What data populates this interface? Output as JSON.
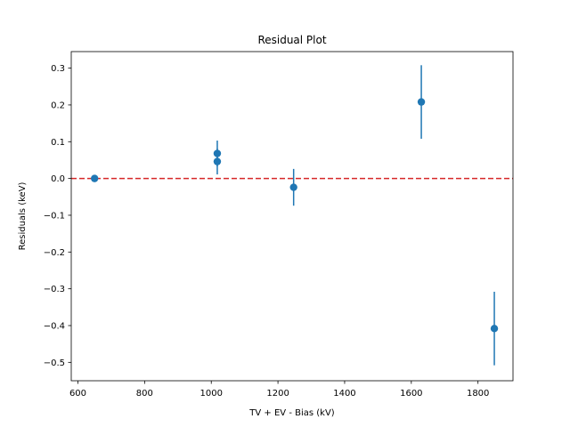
{
  "chart_data": {
    "type": "scatter",
    "title": "Residual Plot",
    "xlabel": "TV + EV - Bias (kV)",
    "ylabel": "Residuals (keV)",
    "xlim": [
      580,
      1905
    ],
    "ylim": [
      -0.55,
      0.345
    ],
    "xticks": [
      600,
      800,
      1000,
      1200,
      1400,
      1600,
      1800
    ],
    "yticks": [
      -0.5,
      -0.4,
      -0.3,
      -0.2,
      -0.1,
      0.0,
      0.1,
      0.2,
      0.3
    ],
    "ytick_labels": [
      "−0.5",
      "−0.4",
      "−0.3",
      "−0.2",
      "−0.1",
      "0.0",
      "0.1",
      "0.2",
      "0.3"
    ],
    "points": [
      {
        "x": 650,
        "y": 0.0,
        "err": 0.005
      },
      {
        "x": 1018,
        "y": 0.068,
        "err": 0.035
      },
      {
        "x": 1018,
        "y": 0.046,
        "err": 0.035
      },
      {
        "x": 1247,
        "y": -0.024,
        "err": 0.05
      },
      {
        "x": 1630,
        "y": 0.208,
        "err": 0.1
      },
      {
        "x": 1849,
        "y": -0.408,
        "err": 0.1
      }
    ],
    "reference_line": {
      "y": 0.0,
      "color": "#d62728",
      "style": "dashed"
    },
    "marker_color": "#1f77b4",
    "grid": false,
    "legend": "none"
  }
}
